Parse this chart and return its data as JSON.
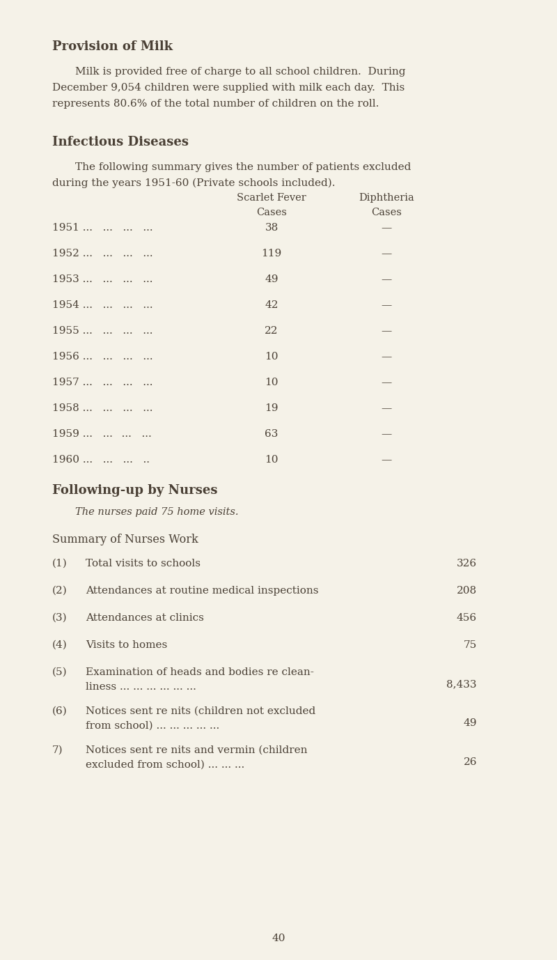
{
  "bg_color": "#f5f2e8",
  "text_color": "#4a4035",
  "page_width": 8.0,
  "page_height": 13.78,
  "dpi": 100,
  "section1_title": "Provision of Milk",
  "section1_body_line1": "Milk is provided free of charge to all school children.  During",
  "section1_body_line2": "December 9,054 children were supplied with milk each day.  This",
  "section1_body_line3": "represents 80.6% of the total number of children on the roll.",
  "section2_title": "Infectious Diseases",
  "section2_body_line1": "The following summary gives the number of patients excluded",
  "section2_body_line2": "during the years 1951-60 (Private schools included).",
  "col_header1_line1": "Scarlet Fever",
  "col_header1_line2": "Cases",
  "col_header2_line1": "Diphtheria",
  "col_header2_line2": "Cases",
  "disease_years": [
    "1951 ...   ...   ...   ...",
    "1952 ...   ...   ...   ...",
    "1953 ...   ...   ...   ...",
    "1954 ...   ...   ...   ...",
    "1955 ...   ...   ...   ...",
    "1956 ...   ...   ...   ...",
    "1957 ...   ...   ...   ...",
    "1958 ...   ...   ...   ...",
    "1959 ...   ...   ...   ...",
    "1960 ...   ...   ...   .."
  ],
  "scarlet_fever": [
    "38",
    "119",
    "49",
    "42",
    "22",
    "10",
    "10",
    "19",
    "63",
    "10"
  ],
  "diphtheria": [
    "—",
    "—",
    "—",
    "—",
    "—",
    "—",
    "—",
    "—",
    "—",
    "—"
  ],
  "section3_title": "Following-up by Nurses",
  "section3_body": "The nurses paid 75 home visits.",
  "section4_title": "Summary of Nurses Work",
  "sum_nums": [
    "(1)",
    "(2)",
    "(3)",
    "(4)",
    "(5)",
    "(6)",
    "7)"
  ],
  "sum_desc1": [
    "Total visits to schools",
    "Attendances at routine medical inspections",
    "Attendances at clinics",
    "Visits to homes",
    "Examination of heads and bodies re clean-",
    "Notices sent re nits (children not excluded",
    "Notices sent re nits and vermin (children"
  ],
  "sum_desc2": [
    "... ... ...",
    "",
    "... ... ...",
    "... ... ...",
    "liness ... ... ... ... ... ...",
    "from school) ... ... ... ... ...",
    "excluded from school) ... ... ..."
  ],
  "sum_vals": [
    "326",
    "208",
    "456",
    "75",
    "8,433",
    "49",
    "26"
  ],
  "sum_twoline": [
    false,
    false,
    false,
    false,
    true,
    true,
    true
  ],
  "page_number": "40"
}
